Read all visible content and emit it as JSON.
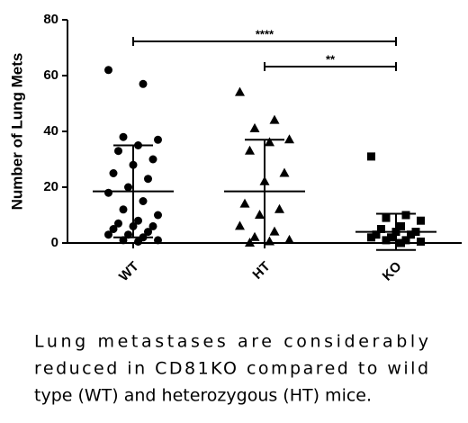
{
  "chart_data": {
    "type": "dot",
    "y_label": "Number of Lung Mets",
    "categories": [
      "WT",
      "HT",
      "KO"
    ],
    "groups": [
      {
        "marker": "circle",
        "mean": 18.5,
        "sd": 16.5,
        "values": [
          62,
          57,
          38,
          37,
          35,
          33,
          30,
          28,
          25,
          23,
          20,
          18,
          15,
          12,
          10,
          8,
          7,
          6,
          6,
          5,
          4,
          3,
          3,
          2,
          1,
          1,
          0.5
        ]
      },
      {
        "marker": "triangle",
        "mean": 18.5,
        "sd": 18.5,
        "values": [
          54,
          44,
          41,
          37,
          36,
          33,
          25,
          22,
          14,
          12,
          10,
          6,
          4,
          2,
          1,
          0.5,
          0
        ]
      },
      {
        "marker": "square",
        "mean": 4,
        "sd": 6.5,
        "values": [
          31,
          10,
          9,
          8,
          6,
          5,
          4,
          4,
          3,
          3,
          2,
          2,
          1,
          1,
          0.5,
          0
        ]
      }
    ],
    "comparisons": [
      {
        "from": "WT",
        "to": "KO",
        "label": "****"
      },
      {
        "from": "HT",
        "to": "KO",
        "label": "**"
      }
    ],
    "color": "#000000",
    "ylim": [
      0,
      80
    ],
    "yticks": [
      0,
      20,
      40,
      60,
      80
    ]
  },
  "caption": [
    "Lung metastases are considerably",
    "reduced in CD81KO compared to wild",
    "type (WT) and heterozygous (HT) mice."
  ]
}
